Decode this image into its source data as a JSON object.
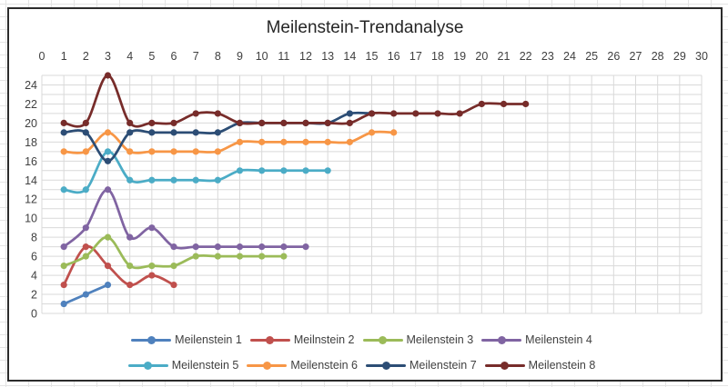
{
  "chart_data": {
    "type": "line",
    "title": "Meilenstein-Trendanalyse",
    "smooth_lines": true,
    "grid": true,
    "legend_position": "bottom",
    "x_axis": {
      "position": "top",
      "min": 0,
      "max": 30,
      "gridline_step": 1,
      "ticks": [
        0,
        1,
        2,
        3,
        4,
        5,
        6,
        7,
        8,
        9,
        10,
        11,
        12,
        13,
        14,
        15,
        16,
        17,
        18,
        19,
        20,
        21,
        22,
        23,
        24,
        25,
        26,
        27,
        28,
        29,
        30
      ]
    },
    "y_axis": {
      "position": "left",
      "min": 0,
      "max": 25,
      "gridline_step": 1,
      "ticks": [
        0,
        2,
        4,
        6,
        8,
        10,
        12,
        14,
        16,
        18,
        20,
        22,
        24
      ]
    },
    "series": [
      {
        "name": "Meilenstein 1",
        "color": "#4F81BD",
        "x_start": 1,
        "values": [
          1,
          2,
          3
        ]
      },
      {
        "name": "Meilnstein 2",
        "color": "#C0504D",
        "x_start": 1,
        "values": [
          3,
          7,
          5,
          3,
          4,
          3
        ]
      },
      {
        "name": "Meilenstein 3",
        "color": "#9BBB59",
        "x_start": 1,
        "values": [
          5,
          6,
          8,
          5,
          5,
          5,
          6,
          6,
          6,
          6,
          6
        ]
      },
      {
        "name": "Meilenstein 4",
        "color": "#8064A2",
        "x_start": 1,
        "values": [
          7,
          9,
          13,
          8,
          9,
          7,
          7,
          7,
          7,
          7,
          7,
          7
        ]
      },
      {
        "name": "Meilenstein 5",
        "color": "#4BACC6",
        "x_start": 1,
        "values": [
          13,
          13,
          17,
          14,
          14,
          14,
          14,
          14,
          15,
          15,
          15,
          15,
          15
        ]
      },
      {
        "name": "Meilenstein 6",
        "color": "#F79646",
        "x_start": 1,
        "values": [
          17,
          17,
          19,
          17,
          17,
          17,
          17,
          17,
          18,
          18,
          18,
          18,
          18,
          18,
          19,
          19
        ]
      },
      {
        "name": "Meilenstein 7",
        "color": "#2C4D75",
        "x_start": 1,
        "values": [
          19,
          19,
          16,
          19,
          19,
          19,
          19,
          19,
          20,
          20,
          20,
          20,
          20,
          21,
          21
        ]
      },
      {
        "name": "Meilenstein 8",
        "color": "#772C2A",
        "x_start": 1,
        "values": [
          20,
          20,
          25,
          20,
          20,
          20,
          21,
          21,
          20,
          20,
          20,
          20,
          20,
          20,
          21,
          21,
          21,
          21,
          21,
          22,
          22,
          22
        ]
      }
    ]
  },
  "colors": {
    "gridline": "#D9D9D9",
    "axis_text": "#404040",
    "title_text": "#262626",
    "chart_border": "#2B2B2B",
    "sheet_line": "#E4E4E4"
  }
}
